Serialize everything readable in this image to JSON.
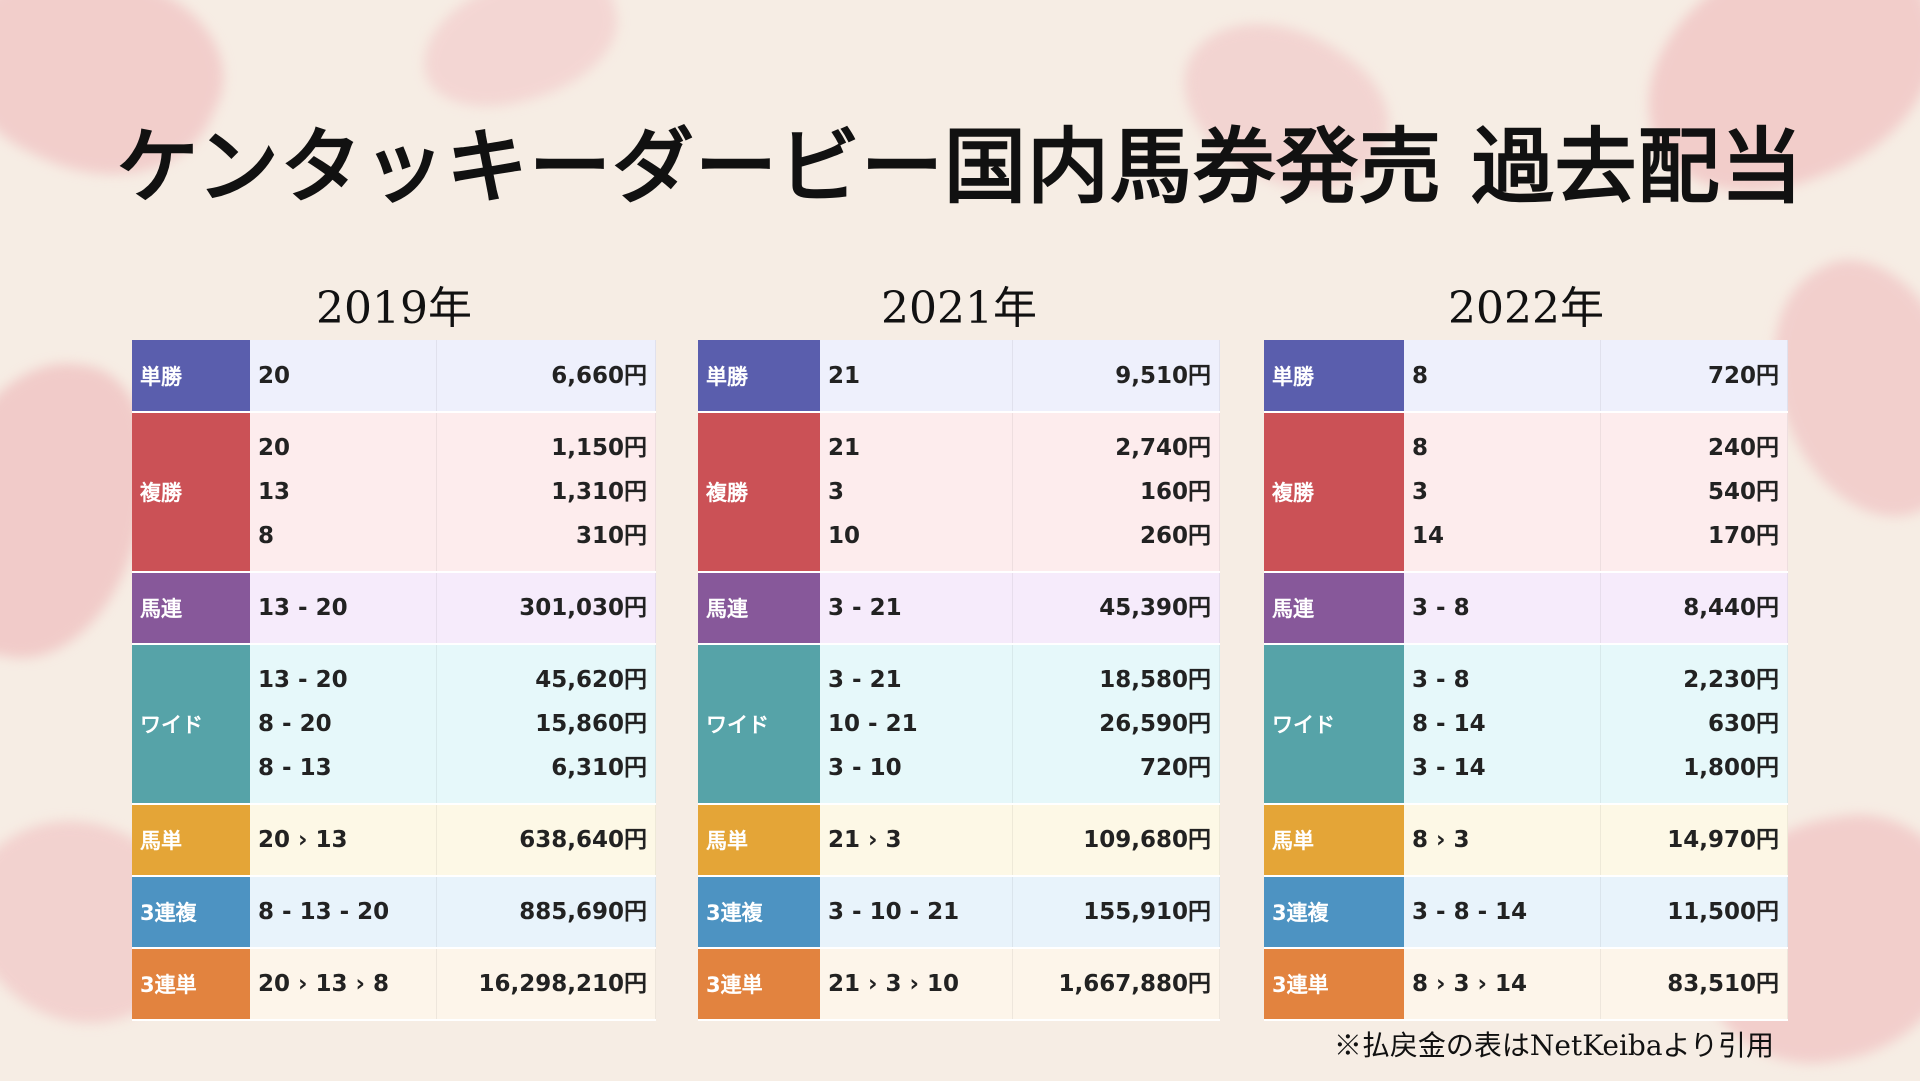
{
  "title": "ケンタッキーダービー国内馬券発売 過去配当",
  "footer": "※払戻金の表はNetKeibaより引用",
  "tables": [
    {
      "year": "2019年",
      "rows": [
        {
          "label": "単勝",
          "combos": [
            "20"
          ],
          "payouts": [
            "6,660円"
          ]
        },
        {
          "label": "複勝",
          "combos": [
            "20",
            "13",
            "8"
          ],
          "payouts": [
            "1,150円",
            "1,310円",
            "310円"
          ]
        },
        {
          "label": "馬連",
          "combos": [
            "13 - 20"
          ],
          "payouts": [
            "301,030円"
          ]
        },
        {
          "label": "ワイド",
          "combos": [
            "13 - 20",
            "8 - 20",
            "8 - 13"
          ],
          "payouts": [
            "45,620円",
            "15,860円",
            "6,310円"
          ]
        },
        {
          "label": "馬単",
          "combos": [
            "20 › 13"
          ],
          "payouts": [
            "638,640円"
          ]
        },
        {
          "label": "3連複",
          "combos": [
            "8 - 13 - 20"
          ],
          "payouts": [
            "885,690円"
          ]
        },
        {
          "label": "3連単",
          "combos": [
            "20 › 13 › 8"
          ],
          "payouts": [
            "16,298,210円"
          ]
        }
      ]
    },
    {
      "year": "2021年",
      "rows": [
        {
          "label": "単勝",
          "combos": [
            "21"
          ],
          "payouts": [
            "9,510円"
          ]
        },
        {
          "label": "複勝",
          "combos": [
            "21",
            "3",
            "10"
          ],
          "payouts": [
            "2,740円",
            "160円",
            "260円"
          ]
        },
        {
          "label": "馬連",
          "combos": [
            "3 - 21"
          ],
          "payouts": [
            "45,390円"
          ]
        },
        {
          "label": "ワイド",
          "combos": [
            "3 - 21",
            "10 - 21",
            "3 - 10"
          ],
          "payouts": [
            "18,580円",
            "26,590円",
            "720円"
          ]
        },
        {
          "label": "馬単",
          "combos": [
            "21 › 3"
          ],
          "payouts": [
            "109,680円"
          ]
        },
        {
          "label": "3連複",
          "combos": [
            "3 - 10 - 21"
          ],
          "payouts": [
            "155,910円"
          ]
        },
        {
          "label": "3連単",
          "combos": [
            "21 › 3 › 10"
          ],
          "payouts": [
            "1,667,880円"
          ]
        }
      ]
    },
    {
      "year": "2022年",
      "rows": [
        {
          "label": "単勝",
          "combos": [
            "8"
          ],
          "payouts": [
            "720円"
          ]
        },
        {
          "label": "複勝",
          "combos": [
            "8",
            "3",
            "14"
          ],
          "payouts": [
            "240円",
            "540円",
            "170円"
          ]
        },
        {
          "label": "馬連",
          "combos": [
            "3 - 8"
          ],
          "payouts": [
            "8,440円"
          ]
        },
        {
          "label": "ワイド",
          "combos": [
            "3 - 8",
            "8 - 14",
            "3 - 14"
          ],
          "payouts": [
            "2,230円",
            "630円",
            "1,800円"
          ]
        },
        {
          "label": "馬単",
          "combos": [
            "8 › 3"
          ],
          "payouts": [
            "14,970円"
          ]
        },
        {
          "label": "3連複",
          "combos": [
            "3 - 8 - 14"
          ],
          "payouts": [
            "11,500円"
          ]
        },
        {
          "label": "3連単",
          "combos": [
            "8 › 3 › 14"
          ],
          "payouts": [
            "83,510円"
          ]
        }
      ]
    }
  ],
  "colors": {
    "単勝": {
      "label": "#5a5ead",
      "row": "#eef0fc"
    },
    "複勝": {
      "label": "#cb5156",
      "row": "#fdeced"
    },
    "馬連": {
      "label": "#87589a",
      "row": "#f6ebfb"
    },
    "ワイド": {
      "label": "#56a3a8",
      "row": "#e6f8fa"
    },
    "馬単": {
      "label": "#e4a537",
      "row": "#fdf8e6"
    },
    "3連複": {
      "label": "#4d93c2",
      "row": "#e8f3fb"
    },
    "3連単": {
      "label": "#e2833f",
      "row": "#fdf5ea"
    }
  }
}
